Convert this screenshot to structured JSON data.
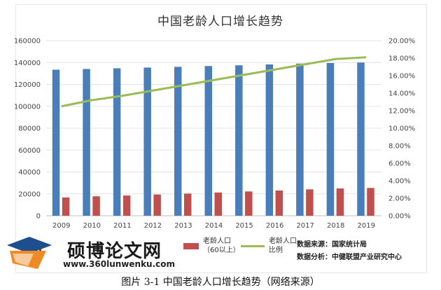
{
  "figure": {
    "caption": "图片 3-1 中国老龄人口增长趋势（网络来源）"
  },
  "chart_data": {
    "type": "bar",
    "title": "中国老龄人口增长趋势",
    "categories": [
      "2009",
      "2010",
      "2011",
      "2012",
      "2013",
      "2014",
      "2015",
      "2016",
      "2017",
      "2018",
      "2019"
    ],
    "series": [
      {
        "name": "",
        "type": "bar",
        "axis": "left",
        "color": "#4a7ebb",
        "values": [
          133450,
          134091,
          134735,
          135404,
          136072,
          136782,
          137462,
          138271,
          139008,
          139538,
          140005
        ]
      },
      {
        "name": "老龄人口（60以上）",
        "type": "bar",
        "axis": "left",
        "color": "#c0504d",
        "values": [
          16714,
          17765,
          18499,
          19390,
          20243,
          21242,
          22200,
          23086,
          24090,
          24949,
          25388
        ]
      },
      {
        "name": "老龄人口比例",
        "type": "line",
        "axis": "right",
        "color": "#9bbb59",
        "values": [
          12.5,
          13.2,
          13.7,
          14.3,
          14.9,
          15.5,
          16.1,
          16.7,
          17.3,
          17.9,
          18.1
        ]
      }
    ],
    "y_left": {
      "min": 0,
      "max": 160000,
      "step": 20000,
      "ticks": [
        "0",
        "20000",
        "40000",
        "60000",
        "80000",
        "100000",
        "120000",
        "140000",
        "160000"
      ]
    },
    "y_right": {
      "min": 0,
      "max": 20,
      "step": 2,
      "ticks": [
        "0.00%",
        "2.00%",
        "4.00%",
        "6.00%",
        "8.00%",
        "10.00%",
        "12.00%",
        "14.00%",
        "16.00%",
        "18.00%",
        "20.00%"
      ]
    },
    "grid": true,
    "legend_position": "bottom"
  },
  "legend": {
    "red_label_line1": "老龄人口",
    "red_label_line2": "（60以上）",
    "green_label_line1": "老龄人口",
    "green_label_line2": "比例"
  },
  "source": {
    "line1": "数据来源：国家统计局",
    "line2": "数据分析：中健联盟产业研究中心"
  },
  "watermark": {
    "name": "硕博论文网",
    "url": "www.360lunwenku.com"
  }
}
